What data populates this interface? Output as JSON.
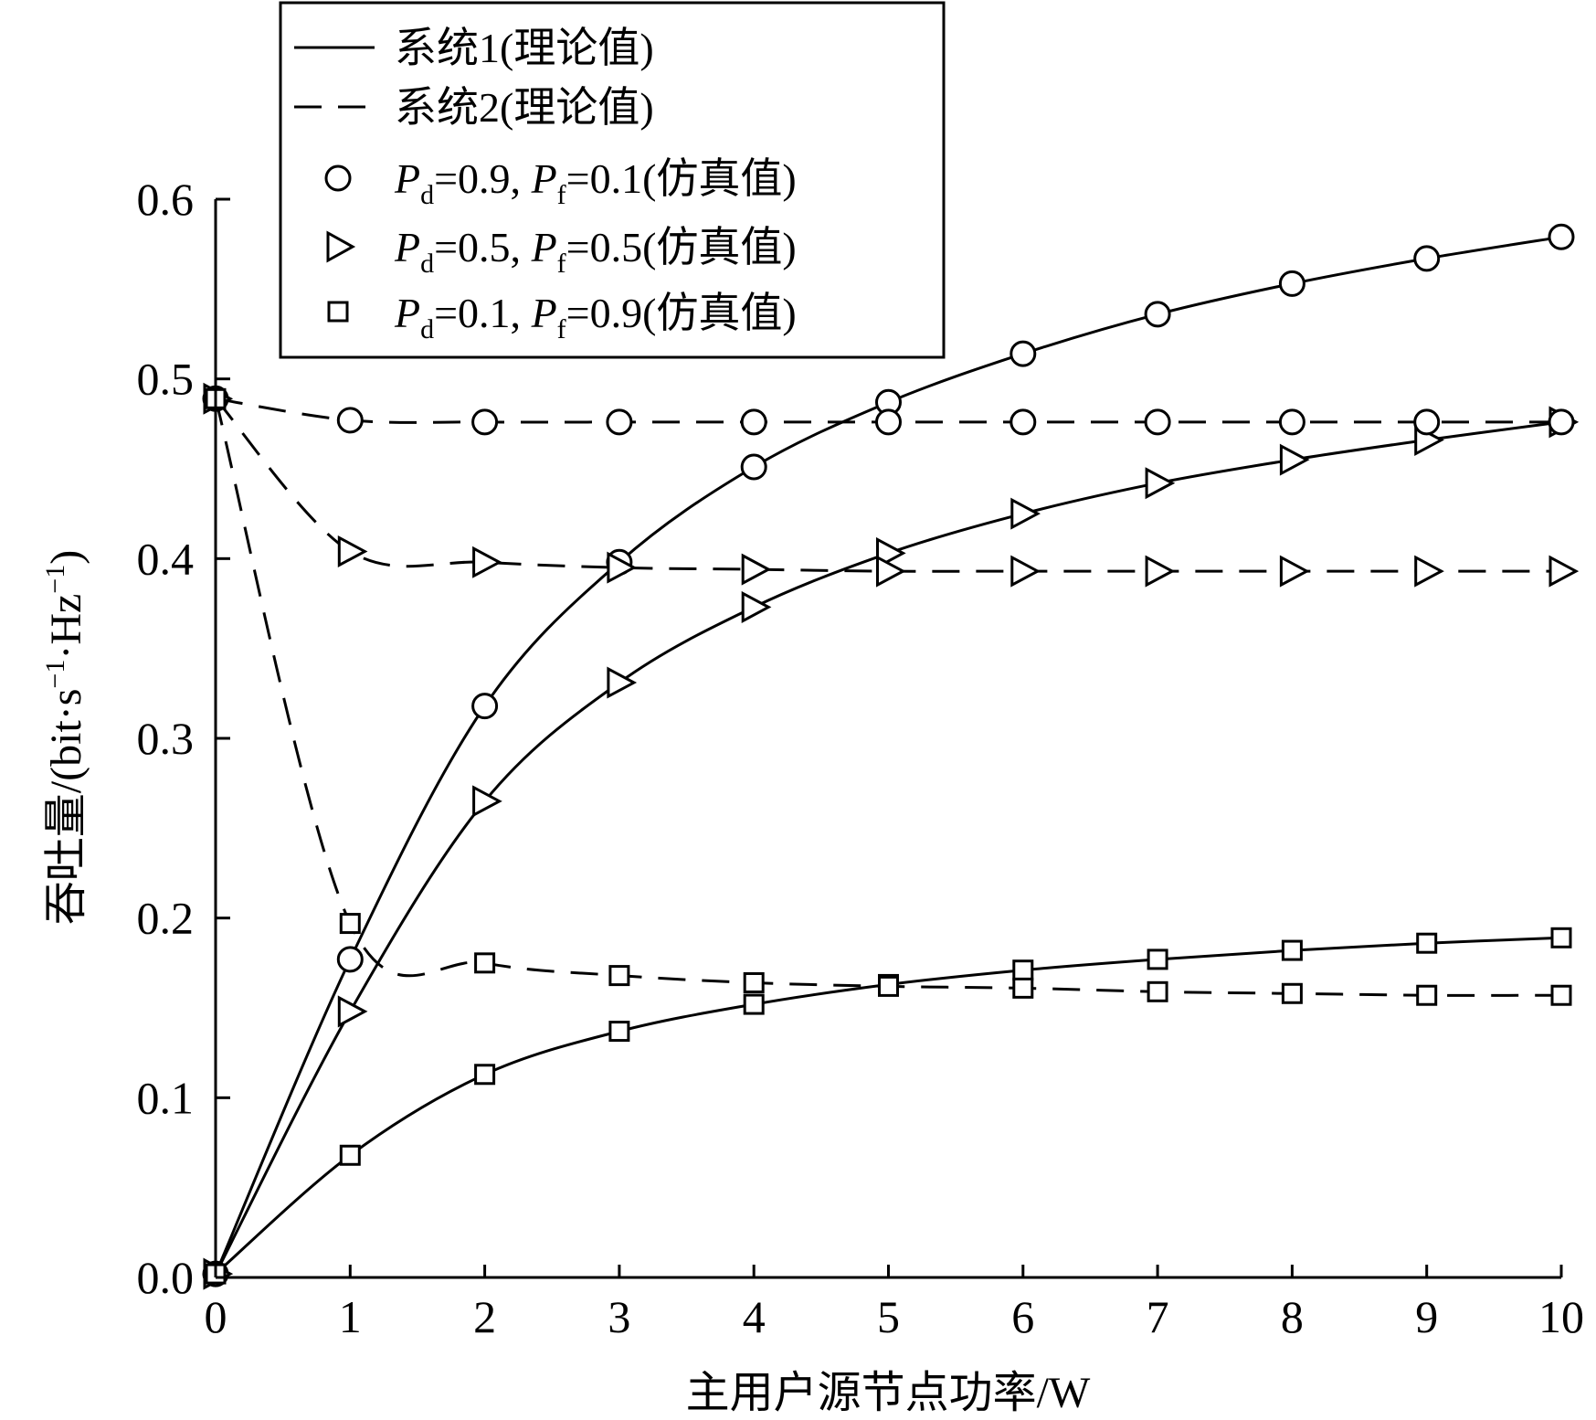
{
  "chart_data": {
    "type": "line",
    "xlabel": "主用户源节点功率/W",
    "ylabel": "吞吐量/(bit·s⁻¹·Hz⁻¹)",
    "xlim": [
      0,
      10
    ],
    "ylim": [
      0,
      0.6
    ],
    "x_ticks": [
      "0",
      "1",
      "2",
      "3",
      "4",
      "5",
      "6",
      "7",
      "8",
      "9",
      "10"
    ],
    "y_ticks": [
      "0.0",
      "0.1",
      "0.2",
      "0.3",
      "0.4",
      "0.5",
      "0.6"
    ],
    "grid": false,
    "legend_position": "top-center",
    "legend": [
      {
        "style": "solid",
        "text": "系统1(理论值)"
      },
      {
        "style": "dashed",
        "text": "系统2(理论值)"
      },
      {
        "marker": "circle",
        "text": "Pd=0.9, Pf=0.1(仿真值)"
      },
      {
        "marker": "triangle",
        "text": "Pd=0.5, Pf=0.5(仿真值)"
      },
      {
        "marker": "square",
        "text": "Pd=0.1, Pf=0.9(仿真值)"
      }
    ],
    "x": [
      0,
      1,
      2,
      3,
      4,
      5,
      6,
      7,
      8,
      9,
      10
    ],
    "series": [
      {
        "system": "系统1",
        "line": "solid",
        "marker": "circle",
        "values": [
          0.002,
          0.177,
          0.318,
          0.398,
          0.451,
          0.487,
          0.514,
          0.536,
          0.553,
          0.567,
          0.579
        ]
      },
      {
        "system": "系统1",
        "line": "solid",
        "marker": "triangle",
        "values": [
          0.002,
          0.148,
          0.265,
          0.331,
          0.373,
          0.403,
          0.425,
          0.442,
          0.455,
          0.466,
          0.476
        ]
      },
      {
        "system": "系统1",
        "line": "solid",
        "marker": "square",
        "values": [
          0.002,
          0.068,
          0.113,
          0.137,
          0.152,
          0.163,
          0.171,
          0.177,
          0.182,
          0.186,
          0.189
        ]
      },
      {
        "system": "系统2",
        "line": "dashed",
        "marker": "circle",
        "values": [
          0.489,
          0.477,
          0.476,
          0.476,
          0.476,
          0.476,
          0.476,
          0.476,
          0.476,
          0.476,
          0.476
        ]
      },
      {
        "system": "系统2",
        "line": "dashed",
        "marker": "triangle",
        "values": [
          0.489,
          0.404,
          0.398,
          0.395,
          0.394,
          0.393,
          0.393,
          0.393,
          0.393,
          0.393,
          0.393
        ]
      },
      {
        "system": "系统2",
        "line": "dashed",
        "marker": "square",
        "values": [
          0.489,
          0.197,
          0.175,
          0.168,
          0.164,
          0.162,
          0.161,
          0.159,
          0.158,
          0.157,
          0.157
        ]
      }
    ]
  }
}
